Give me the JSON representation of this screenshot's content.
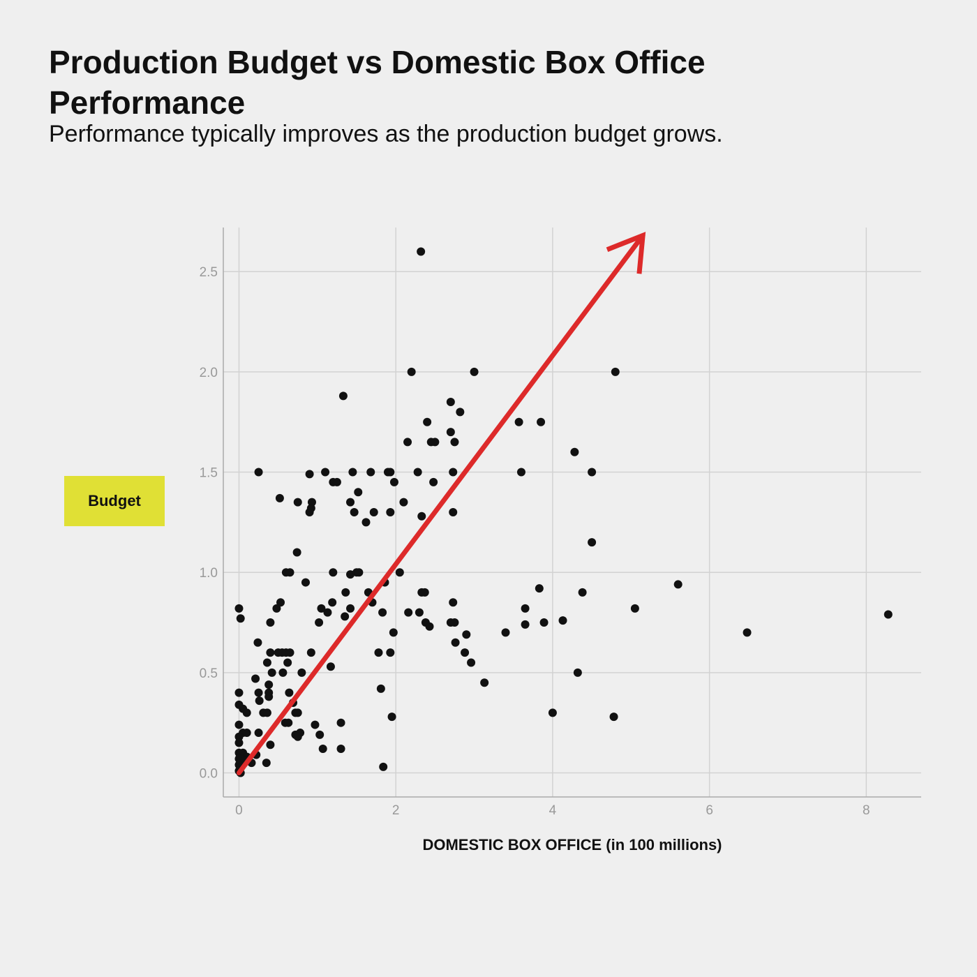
{
  "title": "Production Budget vs Domestic Box Office Performance",
  "subtitle": "Performance typically improves as the production budget grows.",
  "chart_data": {
    "type": "scatter",
    "title": "Production Budget vs Domestic Box Office Performance",
    "subtitle": "Performance typically improves as the production budget grows.",
    "xlabel": "DOMESTIC BOX OFFICE (in 100 millions)",
    "ylabel": "Budget",
    "xlim": [
      -0.2,
      8.7
    ],
    "ylim": [
      -0.12,
      2.72
    ],
    "xticks": [
      0,
      2,
      4,
      6,
      8
    ],
    "yticks": [
      0.0,
      0.5,
      1.0,
      1.5,
      2.0,
      2.5
    ],
    "xtick_labels": [
      "0",
      "2",
      "4",
      "6",
      "8"
    ],
    "ytick_labels": [
      "0.0",
      "0.5",
      "1.0",
      "1.5",
      "2.0",
      "2.5"
    ],
    "grid": true,
    "point_color": "#111111",
    "annotation": {
      "type": "arrow",
      "color": "#dd2a2a",
      "from": [
        0.0,
        0.0
      ],
      "to": [
        5.15,
        2.68
      ]
    },
    "points": [
      [
        2.32,
        2.6
      ],
      [
        2.2,
        2.0
      ],
      [
        3.0,
        2.0
      ],
      [
        4.8,
        2.0
      ],
      [
        1.33,
        1.88
      ],
      [
        2.7,
        1.85
      ],
      [
        2.82,
        1.8
      ],
      [
        2.4,
        1.75
      ],
      [
        3.57,
        1.75
      ],
      [
        3.85,
        1.75
      ],
      [
        2.15,
        1.65
      ],
      [
        2.45,
        1.65
      ],
      [
        2.5,
        1.65
      ],
      [
        2.75,
        1.65
      ],
      [
        2.7,
        1.7
      ],
      [
        4.28,
        1.6
      ],
      [
        0.25,
        1.5
      ],
      [
        0.9,
        1.49
      ],
      [
        1.1,
        1.5
      ],
      [
        1.45,
        1.5
      ],
      [
        1.68,
        1.5
      ],
      [
        1.9,
        1.5
      ],
      [
        1.93,
        1.5
      ],
      [
        2.28,
        1.5
      ],
      [
        2.73,
        1.5
      ],
      [
        3.6,
        1.5
      ],
      [
        4.5,
        1.5
      ],
      [
        1.2,
        1.45
      ],
      [
        1.25,
        1.45
      ],
      [
        1.98,
        1.45
      ],
      [
        2.48,
        1.45
      ],
      [
        1.52,
        1.4
      ],
      [
        0.52,
        1.37
      ],
      [
        0.75,
        1.35
      ],
      [
        0.93,
        1.35
      ],
      [
        1.42,
        1.35
      ],
      [
        2.1,
        1.35
      ],
      [
        0.9,
        1.3
      ],
      [
        0.92,
        1.32
      ],
      [
        1.47,
        1.3
      ],
      [
        1.72,
        1.3
      ],
      [
        1.93,
        1.3
      ],
      [
        2.73,
        1.3
      ],
      [
        2.33,
        1.28
      ],
      [
        1.62,
        1.25
      ],
      [
        4.5,
        1.15
      ],
      [
        0.74,
        1.1
      ],
      [
        0.6,
        1.0
      ],
      [
        0.65,
        1.0
      ],
      [
        1.2,
        1.0
      ],
      [
        1.42,
        0.99
      ],
      [
        1.5,
        1.0
      ],
      [
        1.53,
        1.0
      ],
      [
        2.05,
        1.0
      ],
      [
        0.85,
        0.95
      ],
      [
        1.86,
        0.95
      ],
      [
        5.6,
        0.94
      ],
      [
        3.83,
        0.92
      ],
      [
        1.36,
        0.9
      ],
      [
        1.65,
        0.9
      ],
      [
        2.33,
        0.9
      ],
      [
        2.37,
        0.9
      ],
      [
        4.38,
        0.9
      ],
      [
        0.53,
        0.85
      ],
      [
        1.19,
        0.85
      ],
      [
        1.7,
        0.85
      ],
      [
        2.73,
        0.85
      ],
      [
        0.0,
        0.82
      ],
      [
        0.48,
        0.82
      ],
      [
        1.05,
        0.82
      ],
      [
        1.42,
        0.82
      ],
      [
        3.65,
        0.82
      ],
      [
        5.05,
        0.82
      ],
      [
        1.13,
        0.8
      ],
      [
        1.83,
        0.8
      ],
      [
        2.16,
        0.8
      ],
      [
        2.3,
        0.8
      ],
      [
        8.28,
        0.79
      ],
      [
        0.02,
        0.77
      ],
      [
        1.35,
        0.78
      ],
      [
        4.13,
        0.76
      ],
      [
        0.4,
        0.75
      ],
      [
        1.02,
        0.75
      ],
      [
        2.38,
        0.75
      ],
      [
        2.7,
        0.75
      ],
      [
        2.75,
        0.75
      ],
      [
        3.65,
        0.74
      ],
      [
        3.89,
        0.75
      ],
      [
        2.43,
        0.73
      ],
      [
        1.97,
        0.7
      ],
      [
        2.9,
        0.69
      ],
      [
        3.4,
        0.7
      ],
      [
        6.48,
        0.7
      ],
      [
        2.76,
        0.65
      ],
      [
        0.24,
        0.65
      ],
      [
        0.4,
        0.6
      ],
      [
        0.5,
        0.6
      ],
      [
        0.55,
        0.6
      ],
      [
        0.6,
        0.6
      ],
      [
        0.65,
        0.6
      ],
      [
        0.92,
        0.6
      ],
      [
        1.78,
        0.6
      ],
      [
        1.93,
        0.6
      ],
      [
        2.88,
        0.6
      ],
      [
        0.36,
        0.55
      ],
      [
        0.62,
        0.55
      ],
      [
        2.96,
        0.55
      ],
      [
        1.17,
        0.53
      ],
      [
        0.42,
        0.5
      ],
      [
        0.56,
        0.5
      ],
      [
        0.8,
        0.5
      ],
      [
        4.32,
        0.5
      ],
      [
        0.21,
        0.47
      ],
      [
        0.38,
        0.44
      ],
      [
        3.13,
        0.45
      ],
      [
        1.81,
        0.42
      ],
      [
        0.0,
        0.4
      ],
      [
        0.25,
        0.4
      ],
      [
        0.38,
        0.4
      ],
      [
        0.64,
        0.4
      ],
      [
        0.26,
        0.36
      ],
      [
        0.69,
        0.35
      ],
      [
        0.38,
        0.38
      ],
      [
        0.0,
        0.34
      ],
      [
        0.05,
        0.32
      ],
      [
        0.1,
        0.3
      ],
      [
        0.31,
        0.3
      ],
      [
        0.36,
        0.3
      ],
      [
        0.72,
        0.3
      ],
      [
        0.75,
        0.3
      ],
      [
        4.0,
        0.3
      ],
      [
        1.95,
        0.28
      ],
      [
        4.78,
        0.28
      ],
      [
        0.59,
        0.25
      ],
      [
        0.63,
        0.25
      ],
      [
        0.97,
        0.24
      ],
      [
        1.3,
        0.25
      ],
      [
        0.0,
        0.24
      ],
      [
        0.05,
        0.2
      ],
      [
        0.1,
        0.2
      ],
      [
        0.25,
        0.2
      ],
      [
        0.72,
        0.19
      ],
      [
        0.78,
        0.2
      ],
      [
        1.03,
        0.19
      ],
      [
        0.0,
        0.18
      ],
      [
        0.75,
        0.18
      ],
      [
        0.0,
        0.15
      ],
      [
        0.4,
        0.14
      ],
      [
        1.07,
        0.12
      ],
      [
        1.3,
        0.12
      ],
      [
        0.0,
        0.1
      ],
      [
        0.05,
        0.1
      ],
      [
        0.1,
        0.08
      ],
      [
        0.22,
        0.09
      ],
      [
        0.0,
        0.07
      ],
      [
        0.16,
        0.05
      ],
      [
        0.35,
        0.05
      ],
      [
        0.07,
        0.06
      ],
      [
        0.0,
        0.04
      ],
      [
        0.03,
        0.03
      ],
      [
        1.84,
        0.03
      ],
      [
        0.0,
        0.01
      ],
      [
        0.02,
        0.0
      ]
    ]
  }
}
